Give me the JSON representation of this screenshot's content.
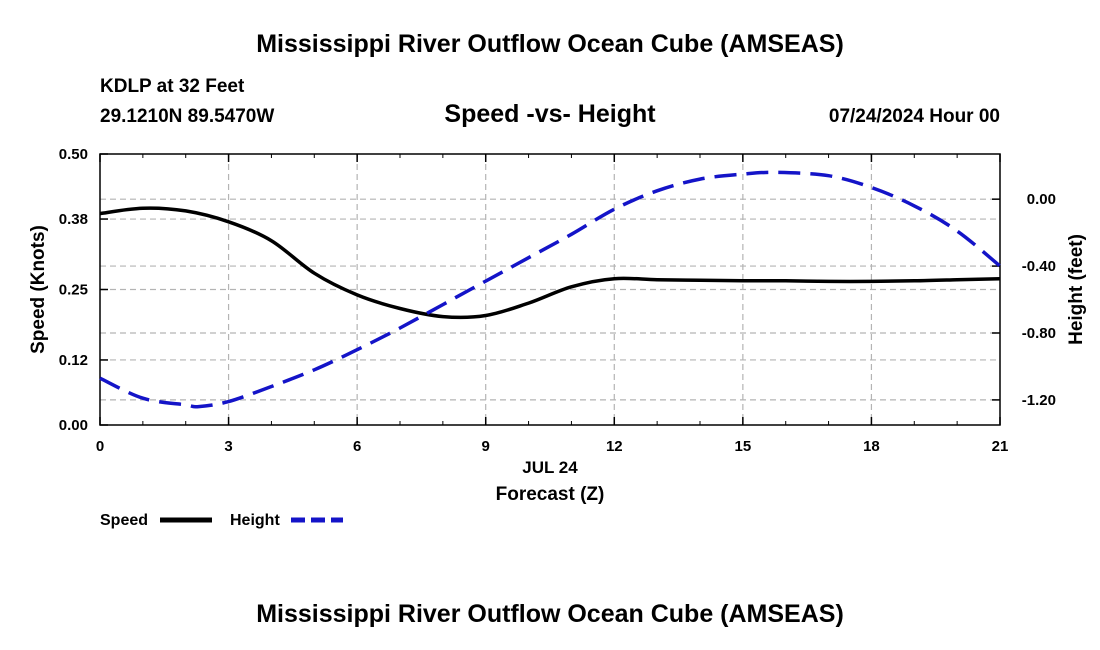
{
  "header": {
    "title": "Mississippi River Outflow Ocean Cube (AMSEAS)",
    "station": "KDLP at 32 Feet",
    "coords": "29.1210N  89.5470W",
    "subtitle": "Speed -vs- Height",
    "run_time": "07/24/2024 Hour 00"
  },
  "footer": {
    "title": "Mississippi River Outflow Ocean Cube (AMSEAS)"
  },
  "legend": {
    "speed_label": "Speed",
    "height_label": "Height"
  },
  "colors": {
    "speed": "#000000",
    "height": "#1414c8",
    "grid": "#b4b4b4"
  },
  "chart_data": {
    "type": "line",
    "title": "Speed -vs- Height",
    "xlabel": "Forecast (Z)",
    "xlabel_date": "JUL 24",
    "ylabel": "Speed (Knots)",
    "y2label": "Height (feet)",
    "xlim": [
      0,
      21
    ],
    "ylim": [
      0,
      0.5
    ],
    "y2lim": [
      -1.35,
      0.27
    ],
    "x_ticks": [
      "0",
      "3",
      "6",
      "9",
      "12",
      "15",
      "18",
      "21"
    ],
    "y_ticks": [
      "0.00",
      "0.12",
      "0.25",
      "0.38",
      "0.50"
    ],
    "y2_ticks": [
      "0.00",
      "-0.40",
      "-0.80",
      "-1.20"
    ],
    "grid": true,
    "legend_position": "bottom-left",
    "series": [
      {
        "name": "Speed",
        "axis": "left",
        "style": "solid",
        "x": [
          0,
          1,
          2,
          3,
          4,
          5,
          6,
          7,
          8,
          9,
          10,
          11,
          12,
          13,
          14,
          15,
          16,
          17,
          18,
          19,
          20,
          21
        ],
        "values": [
          0.39,
          0.4,
          0.395,
          0.375,
          0.34,
          0.28,
          0.24,
          0.215,
          0.2,
          0.202,
          0.225,
          0.255,
          0.27,
          0.268,
          0.267,
          0.266,
          0.266,
          0.265,
          0.265,
          0.266,
          0.268,
          0.27
        ]
      },
      {
        "name": "Height",
        "axis": "right",
        "style": "dashed",
        "x": [
          0,
          1,
          2,
          2.3,
          3,
          4,
          5,
          6,
          7,
          8,
          9,
          10,
          11,
          12,
          13,
          14,
          15,
          15.8,
          17,
          18,
          19,
          20,
          21
        ],
        "values": [
          -1.07,
          -1.19,
          -1.23,
          -1.24,
          -1.21,
          -1.12,
          -1.02,
          -0.9,
          -0.77,
          -0.63,
          -0.49,
          -0.35,
          -0.21,
          -0.06,
          0.05,
          0.12,
          0.15,
          0.16,
          0.14,
          0.07,
          -0.04,
          -0.19,
          -0.4
        ]
      }
    ]
  }
}
